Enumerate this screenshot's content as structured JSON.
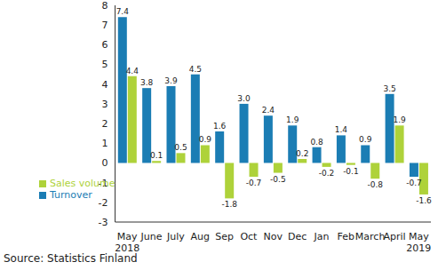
{
  "chart_data": {
    "type": "bar",
    "source": "Source: Statistics Finland",
    "categories": [
      "May 2018",
      "June",
      "July",
      "Aug",
      "Sep",
      "Oct",
      "Nov",
      "Dec",
      "Jan",
      "Feb",
      "March",
      "April",
      "May 2019"
    ],
    "series": [
      {
        "name": "Turnover",
        "color": "#1b7db4",
        "values": [
          7.4,
          3.8,
          3.9,
          4.5,
          1.6,
          3.0,
          2.4,
          1.9,
          0.8,
          1.4,
          0.9,
          3.5,
          -0.7
        ],
        "value_labels": [
          "7.4",
          "3.8",
          "3.9",
          "4.5",
          "1.6",
          "3.0",
          "2.4",
          "1.9",
          "0.8",
          "1.4",
          "0.9",
          "3.5",
          "-0.7"
        ]
      },
      {
        "name": "Sales volume",
        "color": "#aed23a",
        "values": [
          4.4,
          0.1,
          0.5,
          0.9,
          -1.8,
          -0.7,
          -0.5,
          0.2,
          -0.2,
          -0.1,
          -0.8,
          1.9,
          -1.6
        ],
        "value_labels": [
          "4.4",
          "0.1",
          "0.5",
          "0.9",
          "-1.8",
          "-0.7",
          "-0.5",
          "0.2",
          "-0.2",
          "-0.1",
          "-0.8",
          "1.9",
          "-1.6"
        ]
      }
    ],
    "ylim": [
      -3,
      8
    ],
    "yticks": [
      -3,
      -2,
      -1,
      0,
      1,
      2,
      3,
      4,
      5,
      6,
      7,
      8
    ],
    "grid": false,
    "legend": "lower left",
    "data_labels": true
  }
}
